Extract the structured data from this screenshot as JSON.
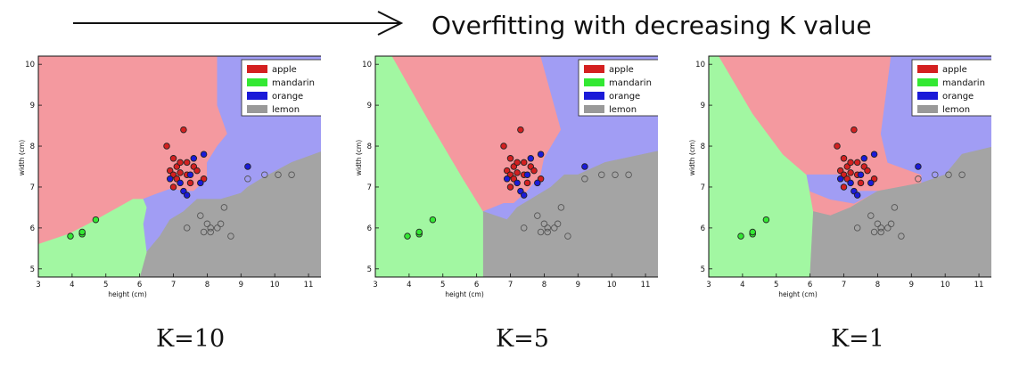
{
  "page": {
    "headline": "Overfitting with decreasing K value"
  },
  "legend": [
    {
      "label": "apple",
      "color": "#d42020"
    },
    {
      "label": "mandarin",
      "color": "#33e833"
    },
    {
      "label": "orange",
      "color": "#1a1ad8"
    },
    {
      "label": "lemon",
      "color": "#999999"
    }
  ],
  "region_colors": {
    "apple": "#f4999f",
    "mandarin": "#a2f7a2",
    "orange": "#a19df4",
    "lemon": "#a4a4a4"
  },
  "chart_data": [
    {
      "type": "scatter",
      "caption": "K=10",
      "xlabel": "height (cm)",
      "ylabel": "width (cm)",
      "xlim": [
        3,
        11.5
      ],
      "ylim": [
        4.8,
        10.2
      ],
      "xticks": [
        3,
        4,
        5,
        6,
        7,
        8,
        9,
        10,
        11
      ],
      "yticks": [
        5,
        6,
        7,
        8,
        9,
        10
      ],
      "legend_position": "top-right",
      "grid": false,
      "regions": [
        {
          "class": "apple",
          "polygon": [
            [
              3,
              10.2
            ],
            [
              8.3,
              10.2
            ],
            [
              8.3,
              9.0
            ],
            [
              8.6,
              8.3
            ],
            [
              8.3,
              8.0
            ],
            [
              8.0,
              7.6
            ],
            [
              8.0,
              7.2
            ],
            [
              7.6,
              6.9
            ],
            [
              7.4,
              6.9
            ],
            [
              6.9,
              6.95
            ],
            [
              6.4,
              6.8
            ],
            [
              6.1,
              6.7
            ],
            [
              5.8,
              6.7
            ],
            [
              4.5,
              6.1
            ],
            [
              3.9,
              5.85
            ],
            [
              3,
              5.6
            ]
          ]
        },
        {
          "class": "orange",
          "polygon": [
            [
              8.3,
              10.2
            ],
            [
              11.5,
              10.2
            ],
            [
              11.5,
              7.9
            ],
            [
              10.5,
              7.6
            ],
            [
              9.6,
              7.2
            ],
            [
              9.2,
              7.0
            ],
            [
              9.0,
              6.85
            ],
            [
              8.4,
              6.7
            ],
            [
              7.7,
              6.7
            ],
            [
              7.3,
              6.4
            ],
            [
              6.9,
              6.2
            ],
            [
              6.6,
              5.8
            ],
            [
              6.2,
              5.4
            ],
            [
              6.1,
              6.1
            ],
            [
              6.2,
              6.5
            ],
            [
              6.1,
              6.7
            ],
            [
              6.4,
              6.8
            ],
            [
              6.9,
              6.95
            ],
            [
              7.4,
              6.9
            ],
            [
              7.6,
              6.9
            ],
            [
              8.0,
              7.2
            ],
            [
              8.0,
              7.6
            ],
            [
              8.3,
              8.0
            ],
            [
              8.6,
              8.3
            ],
            [
              8.3,
              9.0
            ]
          ]
        },
        {
          "class": "lemon",
          "polygon": [
            [
              11.5,
              7.9
            ],
            [
              11.5,
              4.8
            ],
            [
              6.0,
              4.8
            ],
            [
              6.2,
              5.4
            ],
            [
              6.6,
              5.8
            ],
            [
              6.9,
              6.2
            ],
            [
              7.3,
              6.4
            ],
            [
              7.7,
              6.7
            ],
            [
              8.4,
              6.7
            ],
            [
              9.0,
              6.85
            ],
            [
              9.2,
              7.0
            ],
            [
              9.6,
              7.2
            ],
            [
              10.5,
              7.6
            ]
          ]
        },
        {
          "class": "mandarin",
          "polygon": [
            [
              3,
              5.6
            ],
            [
              3.9,
              5.85
            ],
            [
              4.5,
              6.1
            ],
            [
              5.8,
              6.7
            ],
            [
              6.1,
              6.7
            ],
            [
              6.2,
              6.5
            ],
            [
              6.1,
              6.1
            ],
            [
              6.2,
              5.4
            ],
            [
              6.0,
              4.8
            ],
            [
              3,
              4.8
            ]
          ]
        }
      ]
    },
    {
      "type": "scatter",
      "caption": "K=5",
      "xlabel": "height (cm)",
      "ylabel": "width (cm)",
      "xlim": [
        3,
        11.5
      ],
      "ylim": [
        4.8,
        10.2
      ],
      "xticks": [
        3,
        4,
        5,
        6,
        7,
        8,
        9,
        10,
        11
      ],
      "yticks": [
        5,
        6,
        7,
        8,
        9,
        10
      ],
      "legend_position": "top-right",
      "grid": false,
      "regions": [
        {
          "class": "mandarin",
          "polygon": [
            [
              3,
              10.2
            ],
            [
              3.5,
              10.2
            ],
            [
              4.6,
              8.6
            ],
            [
              5.6,
              7.2
            ],
            [
              6.2,
              6.4
            ],
            [
              6.2,
              4.8
            ],
            [
              3,
              4.8
            ]
          ]
        },
        {
          "class": "apple",
          "polygon": [
            [
              3.5,
              10.2
            ],
            [
              7.9,
              10.2
            ],
            [
              8.5,
              8.4
            ],
            [
              8.0,
              7.7
            ],
            [
              7.9,
              7.3
            ],
            [
              7.5,
              6.9
            ],
            [
              7.1,
              6.6
            ],
            [
              6.8,
              6.6
            ],
            [
              6.5,
              6.5
            ],
            [
              6.2,
              6.4
            ],
            [
              5.6,
              7.2
            ],
            [
              4.6,
              8.6
            ]
          ]
        },
        {
          "class": "orange",
          "polygon": [
            [
              7.9,
              10.2
            ],
            [
              11.5,
              10.2
            ],
            [
              11.5,
              7.9
            ],
            [
              9.8,
              7.6
            ],
            [
              9.0,
              7.3
            ],
            [
              8.6,
              7.3
            ],
            [
              8.2,
              7.0
            ],
            [
              7.6,
              6.7
            ],
            [
              7.2,
              6.5
            ],
            [
              6.9,
              6.2
            ],
            [
              6.2,
              6.4
            ],
            [
              6.5,
              6.5
            ],
            [
              6.8,
              6.6
            ],
            [
              7.1,
              6.6
            ],
            [
              7.5,
              6.9
            ],
            [
              7.9,
              7.3
            ],
            [
              8.0,
              7.7
            ],
            [
              8.5,
              8.4
            ]
          ]
        },
        {
          "class": "lemon",
          "polygon": [
            [
              11.5,
              7.9
            ],
            [
              11.5,
              4.8
            ],
            [
              6.2,
              4.8
            ],
            [
              6.2,
              6.4
            ],
            [
              6.9,
              6.2
            ],
            [
              7.2,
              6.5
            ],
            [
              7.6,
              6.7
            ],
            [
              8.2,
              7.0
            ],
            [
              8.6,
              7.3
            ],
            [
              9.0,
              7.3
            ],
            [
              9.8,
              7.6
            ]
          ]
        }
      ]
    },
    {
      "type": "scatter",
      "caption": "K=1",
      "xlabel": "height (cm)",
      "ylabel": "width (cm)",
      "xlim": [
        3,
        11.5
      ],
      "ylim": [
        4.8,
        10.2
      ],
      "xticks": [
        3,
        4,
        5,
        6,
        7,
        8,
        9,
        10,
        11
      ],
      "yticks": [
        5,
        6,
        7,
        8,
        9,
        10
      ],
      "legend_position": "top-right",
      "grid": false,
      "regions": [
        {
          "class": "mandarin",
          "polygon": [
            [
              3,
              10.2
            ],
            [
              3.3,
              10.2
            ],
            [
              4.3,
              8.8
            ],
            [
              5.2,
              7.8
            ],
            [
              5.9,
              7.3
            ],
            [
              6.1,
              6.4
            ],
            [
              6.0,
              4.8
            ],
            [
              3,
              4.8
            ]
          ]
        },
        {
          "class": "apple",
          "polygon": [
            [
              3.3,
              10.2
            ],
            [
              8.4,
              10.2
            ],
            [
              8.1,
              8.3
            ],
            [
              8.3,
              7.6
            ],
            [
              9.3,
              7.3
            ],
            [
              9.3,
              7.1
            ],
            [
              8.0,
              6.9
            ],
            [
              7.2,
              6.5
            ],
            [
              6.6,
              6.3
            ],
            [
              6.1,
              6.4
            ],
            [
              5.9,
              7.3
            ],
            [
              5.2,
              7.8
            ],
            [
              4.3,
              8.8
            ]
          ]
        },
        {
          "class": "orange",
          "polygon": [
            [
              8.4,
              10.2
            ],
            [
              11.5,
              10.2
            ],
            [
              11.5,
              8.0
            ],
            [
              10.5,
              7.8
            ],
            [
              10.0,
              7.3
            ],
            [
              9.3,
              7.1
            ],
            [
              9.3,
              7.3
            ],
            [
              8.3,
              7.6
            ],
            [
              8.1,
              8.3
            ]
          ]
        },
        {
          "class": "orange",
          "polygon": [
            [
              5.9,
              7.3
            ],
            [
              7.0,
              7.3
            ],
            [
              7.3,
              6.9
            ],
            [
              8.0,
              6.9
            ],
            [
              7.3,
              6.6
            ],
            [
              6.6,
              6.7
            ],
            [
              6.0,
              6.9
            ]
          ]
        },
        {
          "class": "lemon",
          "polygon": [
            [
              11.5,
              8.0
            ],
            [
              11.5,
              4.8
            ],
            [
              6.0,
              4.8
            ],
            [
              6.1,
              6.4
            ],
            [
              6.6,
              6.3
            ],
            [
              7.2,
              6.5
            ],
            [
              8.0,
              6.9
            ],
            [
              9.3,
              7.1
            ],
            [
              10.0,
              7.3
            ],
            [
              10.5,
              7.8
            ]
          ]
        }
      ]
    }
  ],
  "points": {
    "apple": [
      [
        7.3,
        8.4
      ],
      [
        6.8,
        8.0
      ],
      [
        7.0,
        7.7
      ],
      [
        6.9,
        7.4
      ],
      [
        7.1,
        7.5
      ],
      [
        7.2,
        7.6
      ],
      [
        7.4,
        7.6
      ],
      [
        7.6,
        7.5
      ],
      [
        7.0,
        7.3
      ],
      [
        7.2,
        7.35
      ],
      [
        7.4,
        7.3
      ],
      [
        7.1,
        7.2
      ],
      [
        7.7,
        7.4
      ],
      [
        7.9,
        7.2
      ],
      [
        7.0,
        7.0
      ],
      [
        7.5,
        7.1
      ]
    ],
    "mandarin": [
      [
        3.95,
        5.8
      ],
      [
        4.3,
        5.85
      ],
      [
        4.3,
        5.9
      ],
      [
        4.7,
        6.2
      ]
    ],
    "orange": [
      [
        7.9,
        7.8
      ],
      [
        7.6,
        7.7
      ],
      [
        9.2,
        7.5
      ],
      [
        7.5,
        7.3
      ],
      [
        7.2,
        7.1
      ],
      [
        7.3,
        6.9
      ],
      [
        7.4,
        6.8
      ],
      [
        7.8,
        7.1
      ],
      [
        6.9,
        7.2
      ]
    ],
    "lemon": [
      [
        9.2,
        7.2
      ],
      [
        9.7,
        7.3
      ],
      [
        10.1,
        7.3
      ],
      [
        10.5,
        7.3
      ],
      [
        7.8,
        6.3
      ],
      [
        8.5,
        6.5
      ],
      [
        8.0,
        6.1
      ],
      [
        8.1,
        6.0
      ],
      [
        8.3,
        6.0
      ],
      [
        8.4,
        6.1
      ],
      [
        7.9,
        5.9
      ],
      [
        8.1,
        5.9
      ],
      [
        7.4,
        6.0
      ],
      [
        8.7,
        5.8
      ]
    ]
  }
}
